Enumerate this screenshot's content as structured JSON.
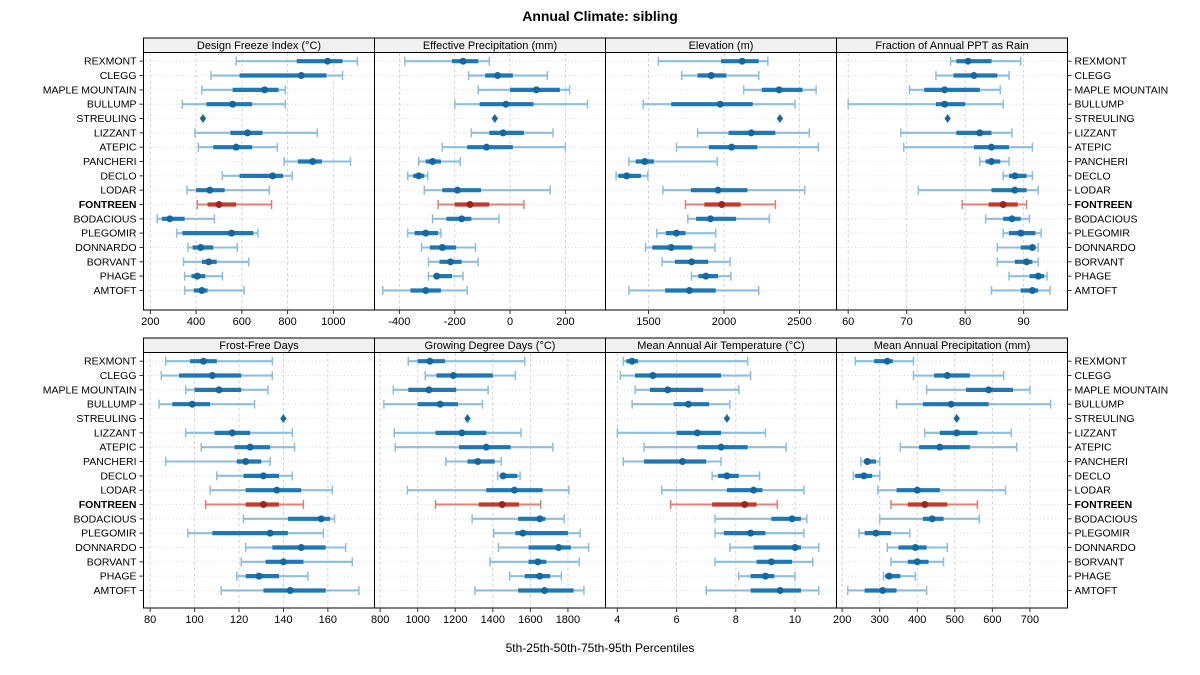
{
  "title": "Annual Climate: sibling",
  "caption": "5th-25th-50th-75th-95th Percentiles",
  "stations": [
    "REXMONT",
    "CLEGG",
    "MAPLE MOUNTAIN",
    "BULLUMP",
    "STREULING",
    "LIZZANT",
    "ATEPIC",
    "PANCHERI",
    "DECLO",
    "LODAR",
    "FONTREEN",
    "BODACIOUS",
    "PLEGOMIR",
    "DONNARDO",
    "BORVANT",
    "PHAGE",
    "AMTOFT"
  ],
  "highlight_station": "FONTREEN",
  "single_value_station": "STREULING",
  "colors": {
    "blue_box": "#1f77b4",
    "blue_whisker": "#8dbedd",
    "blue_dot": "#15689f",
    "red_box": "#c23b2e",
    "red_whisker": "#dd8278",
    "red_dot": "#9c261f",
    "diamond": "#14679f",
    "header_fill": "#f0f0f0",
    "panel_border": "#000000",
    "gridline": "#cfcfcf",
    "tick_text": "#000000"
  },
  "chart_data": [
    {
      "type": "percentile-range",
      "title": "Design Freeze Index (°C)",
      "row": 0,
      "col": 0,
      "xticks": [
        200,
        400,
        600,
        800,
        1000
      ],
      "xlim": [
        170,
        1180
      ],
      "percentiles": [
        5,
        25,
        50,
        75,
        95
      ],
      "values": [
        [
          575,
          840,
          975,
          1040,
          1105
        ],
        [
          465,
          590,
          860,
          970,
          1040
        ],
        [
          425,
          560,
          700,
          760,
          790
        ],
        [
          340,
          445,
          560,
          645,
          790
        ],
        [
          430
        ],
        [
          395,
          550,
          625,
          690,
          930
        ],
        [
          410,
          475,
          575,
          645,
          755
        ],
        [
          785,
          845,
          910,
          950,
          1075
        ],
        [
          515,
          590,
          735,
          780,
          820
        ],
        [
          360,
          400,
          460,
          525,
          720
        ],
        [
          405,
          450,
          500,
          575,
          730
        ],
        [
          230,
          250,
          285,
          350,
          480
        ],
        [
          315,
          340,
          555,
          650,
          670
        ],
        [
          365,
          385,
          420,
          475,
          580
        ],
        [
          345,
          425,
          455,
          490,
          630
        ],
        [
          350,
          380,
          405,
          440,
          515
        ],
        [
          350,
          390,
          425,
          450,
          610
        ]
      ]
    },
    {
      "type": "percentile-range",
      "title": "Effective Precipitation (mm)",
      "row": 0,
      "col": 1,
      "xticks": [
        -400,
        -200,
        0,
        200
      ],
      "xlim": [
        -490,
        345
      ],
      "percentiles": [
        5,
        25,
        50,
        75,
        95
      ],
      "values": [
        [
          -380,
          -210,
          -170,
          -115,
          -75
        ],
        [
          -150,
          -90,
          -45,
          10,
          135
        ],
        [
          -115,
          0,
          95,
          180,
          215
        ],
        [
          -200,
          -110,
          -15,
          85,
          280
        ],
        [
          -55
        ],
        [
          -140,
          -75,
          -25,
          50,
          155
        ],
        [
          -245,
          -155,
          -85,
          10,
          200
        ],
        [
          -330,
          -305,
          -280,
          -250,
          -180
        ],
        [
          -370,
          -350,
          -330,
          -310,
          -298
        ],
        [
          -310,
          -245,
          -190,
          -105,
          145
        ],
        [
          -260,
          -200,
          -145,
          -75,
          50
        ],
        [
          -280,
          -230,
          -175,
          -140,
          -40
        ],
        [
          -370,
          -345,
          -305,
          -260,
          -250
        ],
        [
          -320,
          -290,
          -245,
          -195,
          -125
        ],
        [
          -295,
          -255,
          -215,
          -175,
          -115
        ],
        [
          -295,
          -275,
          -265,
          -210,
          -170
        ],
        [
          -460,
          -360,
          -305,
          -250,
          -155
        ]
      ]
    },
    {
      "type": "percentile-range",
      "title": "Elevation (m)",
      "row": 0,
      "col": 2,
      "xticks": [
        1500,
        2000,
        2500
      ],
      "xlim": [
        1215,
        2745
      ],
      "percentiles": [
        5,
        25,
        50,
        75,
        95
      ],
      "values": [
        [
          1565,
          1980,
          2120,
          2230,
          2290
        ],
        [
          1720,
          1825,
          1915,
          2015,
          2230
        ],
        [
          2130,
          2250,
          2365,
          2520,
          2610
        ],
        [
          1465,
          1650,
          1975,
          2190,
          2470
        ],
        [
          2370
        ],
        [
          1825,
          2030,
          2180,
          2340,
          2565
        ],
        [
          1685,
          1900,
          2050,
          2220,
          2625
        ],
        [
          1370,
          1415,
          1475,
          1535,
          1955
        ],
        [
          1285,
          1300,
          1355,
          1450,
          1495
        ],
        [
          1595,
          1780,
          1960,
          2155,
          2535
        ],
        [
          1745,
          1870,
          1985,
          2110,
          2340
        ],
        [
          1760,
          1815,
          1910,
          2080,
          2300
        ],
        [
          1555,
          1615,
          1685,
          1745,
          1945
        ],
        [
          1480,
          1525,
          1650,
          1790,
          1940
        ],
        [
          1590,
          1675,
          1785,
          1895,
          2040
        ],
        [
          1785,
          1830,
          1880,
          1960,
          2045
        ],
        [
          1370,
          1610,
          1770,
          1945,
          2230
        ]
      ]
    },
    {
      "type": "percentile-range",
      "title": "Fraction of Annual PPT as Rain",
      "row": 0,
      "col": 3,
      "xticks": [
        60,
        70,
        80,
        90
      ],
      "xlim": [
        58,
        97.5
      ],
      "percentiles": [
        5,
        25,
        50,
        75,
        95
      ],
      "values": [
        [
          77.5,
          78.5,
          80.5,
          84.5,
          89.5
        ],
        [
          75,
          78,
          81.5,
          85.5,
          87.5
        ],
        [
          70.5,
          73,
          76.5,
          82.5,
          86
        ],
        [
          60,
          75,
          76.5,
          80,
          86.5
        ],
        [
          77
        ],
        [
          69,
          78.5,
          82.5,
          84.5,
          88
        ],
        [
          69.5,
          81.5,
          84.5,
          87.5,
          91.5
        ],
        [
          82.5,
          83.5,
          84.5,
          86,
          87.5
        ],
        [
          86.5,
          87.5,
          88.5,
          90.5,
          91.5
        ],
        [
          72,
          84.5,
          88.5,
          90.5,
          92.5
        ],
        [
          79.5,
          84,
          86.5,
          89,
          90.5
        ],
        [
          83.5,
          86.5,
          88,
          89.5,
          91
        ],
        [
          86.5,
          87.5,
          89.5,
          92,
          93
        ],
        [
          85.5,
          89.5,
          91.5,
          92,
          92.5
        ],
        [
          85.5,
          88.5,
          90.5,
          91.5,
          92.5
        ],
        [
          87.5,
          91,
          92.5,
          93.5,
          94
        ],
        [
          84.5,
          89.5,
          91.5,
          92.5,
          94.5
        ]
      ]
    },
    {
      "type": "percentile-range",
      "title": "Frost-Free Days",
      "row": 1,
      "col": 0,
      "xticks": [
        80,
        100,
        120,
        140,
        160
      ],
      "xlim": [
        77,
        181
      ],
      "percentiles": [
        5,
        25,
        50,
        75,
        95
      ],
      "values": [
        [
          87,
          98,
          104,
          110,
          135
        ],
        [
          85,
          93,
          108,
          121,
          135
        ],
        [
          96,
          100,
          111,
          121,
          133
        ],
        [
          84,
          90,
          99,
          107,
          127
        ],
        [
          140
        ],
        [
          96,
          109,
          117,
          125,
          144
        ],
        [
          103,
          118,
          125,
          134,
          145
        ],
        [
          87,
          119,
          123,
          130,
          134
        ],
        [
          110,
          122,
          131,
          138,
          144
        ],
        [
          107,
          123,
          137,
          148,
          162
        ],
        [
          105,
          123,
          131,
          138,
          149
        ],
        [
          122,
          142,
          157,
          161,
          163
        ],
        [
          97,
          108,
          134,
          142,
          158
        ],
        [
          123,
          135,
          148,
          159,
          168
        ],
        [
          121,
          132,
          140,
          149,
          171
        ],
        [
          119,
          123,
          129,
          138,
          151
        ],
        [
          112,
          131,
          143,
          159,
          174
        ]
      ]
    },
    {
      "type": "percentile-range",
      "title": "Growing Degree Days (°C)",
      "row": 1,
      "col": 1,
      "xticks": [
        800,
        1000,
        1200,
        1400,
        1600,
        1800
      ],
      "xlim": [
        770,
        2000
      ],
      "percentiles": [
        5,
        25,
        50,
        75,
        95
      ],
      "values": [
        [
          950,
          1000,
          1065,
          1145,
          1570
        ],
        [
          1040,
          1100,
          1190,
          1400,
          1520
        ],
        [
          870,
          950,
          1060,
          1205,
          1375
        ],
        [
          820,
          1000,
          1120,
          1215,
          1345
        ],
        [
          1265
        ],
        [
          875,
          1095,
          1235,
          1365,
          1550
        ],
        [
          880,
          1220,
          1365,
          1495,
          1720
        ],
        [
          1150,
          1265,
          1320,
          1410,
          1445
        ],
        [
          1425,
          1440,
          1455,
          1530,
          1545
        ],
        [
          945,
          1365,
          1515,
          1665,
          1805
        ],
        [
          1095,
          1325,
          1450,
          1540,
          1655
        ],
        [
          1290,
          1535,
          1650,
          1680,
          1780
        ],
        [
          1405,
          1520,
          1560,
          1800,
          1865
        ],
        [
          1430,
          1590,
          1750,
          1815,
          1910
        ],
        [
          1385,
          1590,
          1640,
          1685,
          1860
        ],
        [
          1490,
          1570,
          1650,
          1705,
          1765
        ],
        [
          1305,
          1535,
          1675,
          1830,
          1885
        ]
      ]
    },
    {
      "type": "percentile-range",
      "title": "Mean Annual Air Temperature (°C)",
      "row": 1,
      "col": 2,
      "xticks": [
        4,
        6,
        8,
        10
      ],
      "xlim": [
        3.6,
        11.4
      ],
      "percentiles": [
        5,
        25,
        50,
        75,
        95
      ],
      "values": [
        [
          4.2,
          4.3,
          4.5,
          4.7,
          8.4
        ],
        [
          4.1,
          4.6,
          5.2,
          7.5,
          8.5
        ],
        [
          4.6,
          5.1,
          5.7,
          6.9,
          8.1
        ],
        [
          4.5,
          5.9,
          6.4,
          7.1,
          7.8
        ],
        [
          7.7
        ],
        [
          4.0,
          6.0,
          6.7,
          7.5,
          9.0
        ],
        [
          4.9,
          6.7,
          7.5,
          8.4,
          9.7
        ],
        [
          4.2,
          4.9,
          6.2,
          7.0,
          7.5
        ],
        [
          7.2,
          7.4,
          7.7,
          8.1,
          8.8
        ],
        [
          5.5,
          7.7,
          8.6,
          8.9,
          10.3
        ],
        [
          5.8,
          7.2,
          8.3,
          8.7,
          9.4
        ],
        [
          7.3,
          9.2,
          9.9,
          10.2,
          10.4
        ],
        [
          7.3,
          7.6,
          8.5,
          9.0,
          10.3
        ],
        [
          7.8,
          8.6,
          10.0,
          10.2,
          10.8
        ],
        [
          7.3,
          8.7,
          9.2,
          9.9,
          10.6
        ],
        [
          8.1,
          8.5,
          9.0,
          9.3,
          10.0
        ],
        [
          7.0,
          8.5,
          9.5,
          10.2,
          10.8
        ]
      ]
    },
    {
      "type": "percentile-range",
      "title": "Mean Annual Precipitation (mm)",
      "row": 1,
      "col": 3,
      "xticks": [
        200,
        300,
        400,
        500,
        600,
        700
      ],
      "xlim": [
        185,
        800
      ],
      "percentiles": [
        5,
        25,
        50,
        75,
        95
      ],
      "values": [
        [
          235,
          285,
          320,
          335,
          390
        ],
        [
          390,
          445,
          480,
          540,
          630
        ],
        [
          425,
          530,
          590,
          655,
          700
        ],
        [
          345,
          415,
          490,
          590,
          755
        ],
        [
          505
        ],
        [
          420,
          460,
          505,
          560,
          650
        ],
        [
          355,
          405,
          460,
          540,
          665
        ],
        [
          250,
          260,
          267,
          290,
          300
        ],
        [
          230,
          235,
          258,
          280,
          300
        ],
        [
          295,
          345,
          400,
          460,
          635
        ],
        [
          330,
          375,
          420,
          480,
          560
        ],
        [
          300,
          415,
          440,
          470,
          565
        ],
        [
          245,
          260,
          290,
          330,
          380
        ],
        [
          320,
          350,
          395,
          425,
          480
        ],
        [
          330,
          375,
          400,
          430,
          470
        ],
        [
          310,
          315,
          325,
          355,
          395
        ],
        [
          215,
          260,
          308,
          345,
          425
        ]
      ]
    }
  ]
}
